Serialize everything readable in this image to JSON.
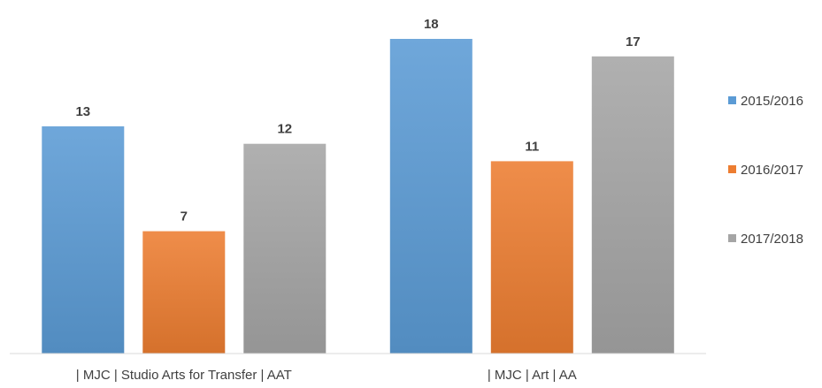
{
  "chart_data": {
    "type": "bar",
    "categories": [
      "| MJC | Studio Arts for Transfer | AAT",
      "| MJC | Art | AA"
    ],
    "series": [
      {
        "name": "2015/2016",
        "values": [
          13,
          18
        ],
        "color": "#5b9bd5"
      },
      {
        "name": "2016/2017",
        "values": [
          7,
          11
        ],
        "color": "#ed7d31"
      },
      {
        "name": "2017/2018",
        "values": [
          12,
          17
        ],
        "color": "#a5a5a5"
      }
    ],
    "title": "",
    "xlabel": "",
    "ylabel": "",
    "ylim": [
      0,
      20
    ],
    "grid": false,
    "legend": "right",
    "data_labels": true
  }
}
